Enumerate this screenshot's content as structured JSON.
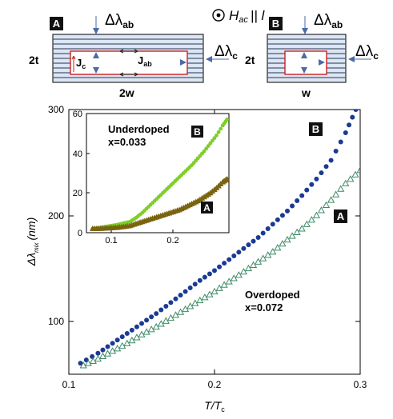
{
  "schematic": {
    "panel_a": {
      "tag": "A",
      "thickness_label": "2t",
      "width_label": "2w",
      "jc_label": "J",
      "jc_sub": "c",
      "jab_label": "J",
      "jab_sub": "ab",
      "dl_ab": "Δλ",
      "dl_ab_sub": "ab",
      "dl_c": "Δλ",
      "dl_c_sub": "c"
    },
    "field_label": "H",
    "field_sub": "ac",
    "field_suffix": "|| l",
    "panel_b": {
      "tag": "B",
      "thickness_label": "2t",
      "width_label": "w",
      "dl_ab": "Δλ",
      "dl_ab_sub": "ab",
      "dl_c": "Δλ",
      "dl_c_sub": "c"
    }
  },
  "colors": {
    "series_b": "#1a3a94",
    "series_a": "#3e8a66",
    "inset_b": "#7fce2a",
    "inset_a": "#7a6410",
    "stripe": "#4a5a74",
    "slab_fill": "#dde6f4",
    "current": "#cc2222"
  },
  "chart_data": [
    {
      "type": "scatter",
      "xlabel": "T/T",
      "xlabel_sub": "c",
      "ylabel": "Δλ",
      "ylabel_sub": "mix",
      "ylabel_unit": "(nm)",
      "xlim": [
        0.1,
        0.3
      ],
      "ylim": [
        60,
        300
      ],
      "x_ticks": [
        "0.1",
        "0.2",
        "0.3"
      ],
      "y_ticks": [
        "100",
        "200",
        "300"
      ],
      "annotation_title": "Overdoped",
      "annotation_value": "x=0.072",
      "series": [
        {
          "name": "B",
          "marker": "circle",
          "x": [
            0.108,
            0.12,
            0.13,
            0.14,
            0.15,
            0.16,
            0.17,
            0.18,
            0.19,
            0.2,
            0.21,
            0.22,
            0.23,
            0.24,
            0.25,
            0.26,
            0.27,
            0.28,
            0.29,
            0.297
          ],
          "y": [
            70,
            79,
            88,
            97,
            106,
            115,
            125,
            135,
            145,
            154,
            164,
            174,
            184,
            196,
            208,
            222,
            237,
            254,
            279,
            300
          ]
        },
        {
          "name": "A",
          "marker": "triangle",
          "x": [
            0.11,
            0.12,
            0.13,
            0.14,
            0.15,
            0.16,
            0.17,
            0.18,
            0.19,
            0.2,
            0.21,
            0.22,
            0.23,
            0.24,
            0.25,
            0.26,
            0.27,
            0.28,
            0.29,
            0.3
          ],
          "y": [
            68,
            74,
            81,
            88,
            96,
            103,
            111,
            119,
            127,
            135,
            144,
            153,
            162,
            171,
            182,
            192,
            204,
            218,
            233,
            245
          ]
        }
      ]
    },
    {
      "type": "scatter",
      "xlim": [
        0.06,
        0.29
      ],
      "ylim": [
        0,
        60
      ],
      "x_ticks": [
        "0.1",
        "0.2"
      ],
      "y_ticks": [
        "0",
        "20",
        "40",
        "60"
      ],
      "annotation_title": "Underdoped",
      "annotation_value": "x=0.033",
      "series": [
        {
          "name": "B",
          "marker": "circle",
          "x": [
            0.07,
            0.08,
            0.09,
            0.1,
            0.11,
            0.12,
            0.13,
            0.14,
            0.15,
            0.16,
            0.17,
            0.18,
            0.19,
            0.2,
            0.21,
            0.22,
            0.23,
            0.24,
            0.25,
            0.26,
            0.27,
            0.28,
            0.287
          ],
          "y": [
            2,
            2.5,
            3,
            3.5,
            4,
            4.8,
            5.5,
            7.5,
            10,
            13,
            16,
            19,
            22,
            25,
            28,
            31,
            34,
            37.5,
            41,
            45,
            49,
            54,
            57
          ]
        },
        {
          "name": "A",
          "marker": "triangle",
          "x": [
            0.07,
            0.08,
            0.09,
            0.1,
            0.11,
            0.12,
            0.13,
            0.14,
            0.15,
            0.16,
            0.17,
            0.18,
            0.19,
            0.2,
            0.21,
            0.22,
            0.23,
            0.24,
            0.25,
            0.26,
            0.27,
            0.28,
            0.287
          ],
          "y": [
            2,
            2,
            2.2,
            2.4,
            2.6,
            3,
            3.5,
            4.5,
            5.5,
            6.5,
            7.5,
            8.5,
            9.5,
            10.5,
            11.5,
            13,
            14.5,
            16,
            18,
            20,
            22.5,
            25.5,
            27
          ]
        }
      ]
    }
  ]
}
